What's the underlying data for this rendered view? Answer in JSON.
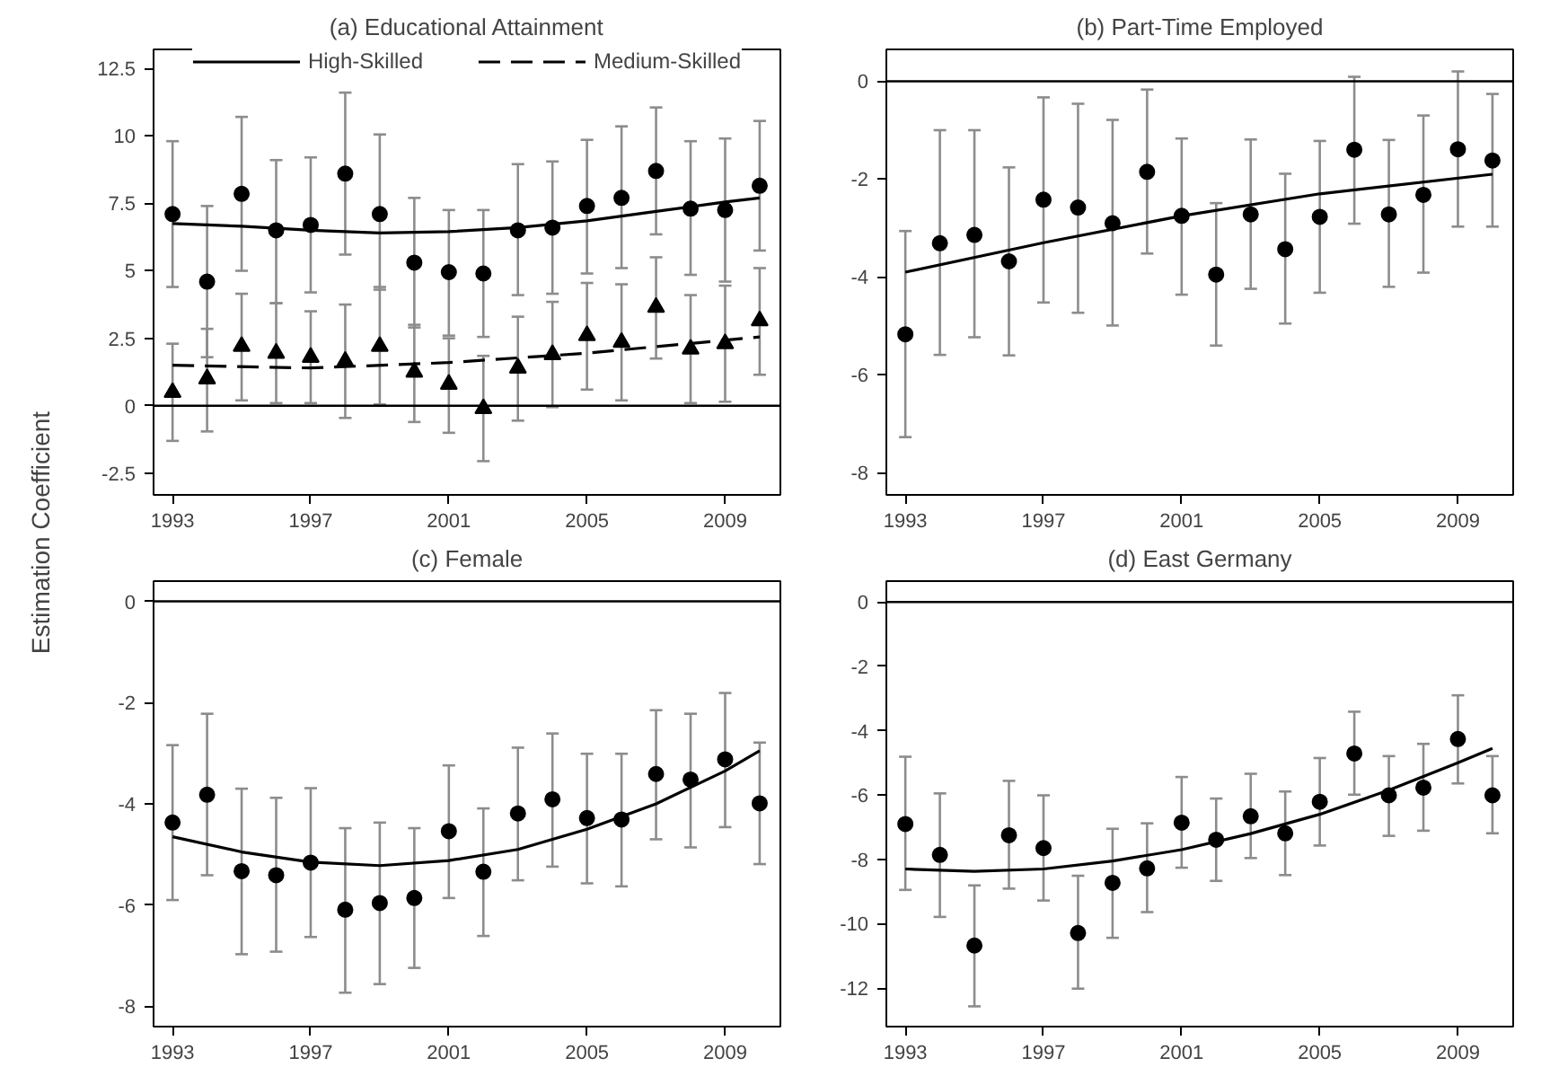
{
  "chart_data": [
    {
      "type": "scatter",
      "title": "(a) Educational Attainment",
      "ylabel": "Estimation Coefficient",
      "x": [
        1993,
        1994,
        1995,
        1996,
        1997,
        1998,
        1999,
        2000,
        2001,
        2002,
        2003,
        2004,
        2005,
        2006,
        2007,
        2008,
        2009,
        2010
      ],
      "xlim": [
        1992.45,
        2010.6
      ],
      "xticks": [
        1993,
        1997,
        2001,
        2005,
        2009
      ],
      "ylim": [
        -3.3,
        13.2
      ],
      "yticks": [
        -2.5,
        0,
        2.5,
        5,
        7.5,
        10,
        12.5
      ],
      "legend": "top",
      "ref_lines": [
        {
          "axis": "y",
          "value": 0,
          "color": "#000000"
        }
      ],
      "series": [
        {
          "color": "#000000",
          "marker": "circle",
          "values": [
            7.1,
            4.6,
            7.85,
            6.5,
            6.7,
            8.6,
            7.1,
            5.3,
            4.95,
            4.9,
            6.5,
            6.6,
            7.4,
            7.7,
            8.7,
            7.3,
            7.25,
            8.15
          ],
          "errors": [
            [
              4.4,
              9.8
            ],
            [
              1.8,
              7.4
            ],
            [
              5.0,
              10.7
            ],
            [
              3.8,
              9.1
            ],
            [
              4.2,
              9.2
            ],
            [
              5.6,
              11.6
            ],
            [
              4.3,
              10.05
            ],
            [
              2.9,
              7.7
            ],
            [
              2.6,
              7.25
            ],
            [
              2.55,
              7.25
            ],
            [
              4.1,
              8.95
            ],
            [
              4.15,
              9.05
            ],
            [
              4.9,
              9.85
            ],
            [
              5.1,
              10.35
            ],
            [
              6.35,
              11.05
            ],
            [
              4.85,
              9.8
            ],
            [
              4.6,
              9.9
            ],
            [
              5.75,
              10.55
            ]
          ]
        },
        {
          "color": "#000000",
          "marker": "triangle",
          "values": [
            0.5,
            1.0,
            2.2,
            1.95,
            1.8,
            1.65,
            2.2,
            1.25,
            0.8,
            -0.1,
            1.4,
            1.9,
            2.6,
            2.35,
            3.65,
            2.1,
            2.3,
            3.15
          ],
          "errors": [
            [
              -1.3,
              2.3
            ],
            [
              -0.95,
              2.85
            ],
            [
              0.2,
              4.15
            ],
            [
              0.1,
              3.8
            ],
            [
              0.1,
              3.5
            ],
            [
              -0.45,
              3.75
            ],
            [
              0.05,
              4.4
            ],
            [
              -0.6,
              3.0
            ],
            [
              -1.0,
              2.5
            ],
            [
              -2.05,
              1.85
            ],
            [
              -0.55,
              3.3
            ],
            [
              -0.05,
              3.85
            ],
            [
              0.6,
              4.55
            ],
            [
              0.2,
              4.5
            ],
            [
              1.75,
              5.5
            ],
            [
              0.1,
              4.1
            ],
            [
              0.15,
              4.45
            ],
            [
              1.15,
              5.1
            ]
          ]
        },
        {
          "type": "line",
          "name": "High-Skilled",
          "color": "#000000",
          "line_style": "solid",
          "x": [
            1993,
            1995,
            1997,
            1999,
            2001,
            2003,
            2005,
            2007,
            2009,
            2010
          ],
          "values": [
            6.75,
            6.65,
            6.5,
            6.4,
            6.45,
            6.6,
            6.85,
            7.2,
            7.55,
            7.7
          ]
        },
        {
          "type": "line",
          "name": "Medium-Skilled",
          "color": "#000000",
          "line_style": "dashed",
          "x": [
            1993,
            1997,
            2001,
            2005,
            2010
          ],
          "values": [
            1.5,
            1.4,
            1.6,
            1.95,
            2.55
          ]
        }
      ]
    },
    {
      "type": "scatter",
      "title": "(b) Part-Time Employed",
      "x": [
        1993,
        1994,
        1995,
        1996,
        1997,
        1998,
        1999,
        2000,
        2001,
        2002,
        2003,
        2004,
        2005,
        2006,
        2007,
        2008,
        2009,
        2010
      ],
      "xlim": [
        1992.45,
        2010.6
      ],
      "xticks": [
        1993,
        1997,
        2001,
        2005,
        2009
      ],
      "ylim": [
        -8.45,
        0.65
      ],
      "yticks": [
        -8,
        -6,
        -4,
        -2,
        0
      ],
      "ref_lines": [
        {
          "axis": "y",
          "value": 0,
          "color": "#000000"
        }
      ],
      "series": [
        {
          "color": "#000000",
          "marker": "circle",
          "values": [
            -5.17,
            -3.31,
            -3.14,
            -3.68,
            -2.42,
            -2.58,
            -2.9,
            -1.85,
            -2.75,
            -3.95,
            -2.72,
            -3.43,
            -2.77,
            -1.4,
            -2.72,
            -2.32,
            -1.39,
            -1.62
          ],
          "errors": [
            [
              -7.27,
              -3.06
            ],
            [
              -5.59,
              -1.0
            ],
            [
              -5.23,
              -1.0
            ],
            [
              -5.6,
              -1.76
            ],
            [
              -4.52,
              -0.33
            ],
            [
              -4.73,
              -0.46
            ],
            [
              -4.99,
              -0.79
            ],
            [
              -3.52,
              -0.17
            ],
            [
              -4.36,
              -1.17
            ],
            [
              -5.4,
              -2.49
            ],
            [
              -4.24,
              -1.19
            ],
            [
              -4.95,
              -1.89
            ],
            [
              -4.32,
              -1.22
            ],
            [
              -2.91,
              0.09
            ],
            [
              -4.2,
              -1.2
            ],
            [
              -3.91,
              -0.7
            ],
            [
              -2.97,
              0.2
            ],
            [
              -2.97,
              -0.26
            ]
          ]
        },
        {
          "type": "line",
          "color": "#000000",
          "line_style": "solid",
          "x": [
            1993,
            1997,
            2001,
            2005,
            2010
          ],
          "values": [
            -3.9,
            -3.3,
            -2.75,
            -2.3,
            -1.9
          ]
        }
      ]
    },
    {
      "type": "scatter",
      "title": "(c) Female",
      "x": [
        1993,
        1994,
        1995,
        1996,
        1997,
        1998,
        1999,
        2000,
        2001,
        2002,
        2003,
        2004,
        2005,
        2006,
        2007,
        2008,
        2009,
        2010
      ],
      "xlim": [
        1992.45,
        2010.6
      ],
      "xticks": [
        1993,
        1997,
        2001,
        2005,
        2009
      ],
      "ylim": [
        -8.4,
        0.4
      ],
      "yticks": [
        -8,
        -6,
        -4,
        -2,
        0
      ],
      "ref_lines": [
        {
          "axis": "y",
          "value": 0,
          "color": "#000000"
        }
      ],
      "series": [
        {
          "color": "#000000",
          "marker": "circle",
          "values": [
            -4.37,
            -3.82,
            -5.33,
            -5.41,
            -5.16,
            -6.09,
            -5.96,
            -5.86,
            -4.54,
            -5.34,
            -4.19,
            -3.91,
            -4.28,
            -4.31,
            -3.41,
            -3.52,
            -3.12,
            -3.99
          ],
          "errors": [
            [
              -5.9,
              -2.84
            ],
            [
              -5.41,
              -2.22
            ],
            [
              -6.97,
              -3.7
            ],
            [
              -6.92,
              -3.88
            ],
            [
              -6.63,
              -3.69
            ],
            [
              -7.73,
              -4.48
            ],
            [
              -7.56,
              -4.37
            ],
            [
              -7.24,
              -4.48
            ],
            [
              -5.86,
              -3.24
            ],
            [
              -6.61,
              -4.09
            ],
            [
              -5.51,
              -2.89
            ],
            [
              -5.24,
              -2.61
            ],
            [
              -5.57,
              -3.01
            ],
            [
              -5.63,
              -3.01
            ],
            [
              -4.7,
              -2.15
            ],
            [
              -4.86,
              -2.22
            ],
            [
              -4.46,
              -1.81
            ],
            [
              -5.19,
              -2.79
            ]
          ]
        },
        {
          "type": "line",
          "color": "#000000",
          "line_style": "solid",
          "x": [
            1993,
            1995,
            1997,
            1999,
            2001,
            2003,
            2005,
            2007,
            2009,
            2010
          ],
          "values": [
            -4.65,
            -4.95,
            -5.15,
            -5.22,
            -5.12,
            -4.9,
            -4.5,
            -4.0,
            -3.35,
            -2.95
          ]
        }
      ]
    },
    {
      "type": "scatter",
      "title": "(d) East Germany",
      "x": [
        1993,
        1994,
        1995,
        1996,
        1997,
        1998,
        1999,
        2000,
        2001,
        2002,
        2003,
        2004,
        2005,
        2006,
        2007,
        2008,
        2009,
        2010
      ],
      "xlim": [
        1992.45,
        2010.6
      ],
      "xticks": [
        1993,
        1997,
        2001,
        2005,
        2009
      ],
      "ylim": [
        -13.2,
        0.65
      ],
      "yticks": [
        -12,
        -10,
        -8,
        -6,
        -4,
        -2,
        0
      ],
      "ref_lines": [
        {
          "axis": "y",
          "value": 0,
          "color": "#000000"
        }
      ],
      "series": [
        {
          "color": "#000000",
          "marker": "circle",
          "values": [
            -6.9,
            -7.86,
            -10.68,
            -7.25,
            -7.65,
            -10.29,
            -8.73,
            -8.28,
            -6.86,
            -7.39,
            -6.66,
            -7.19,
            -6.21,
            -4.71,
            -6.01,
            -5.77,
            -4.26,
            -6.01
          ],
          "errors": [
            [
              -8.95,
              -4.81
            ],
            [
              -9.79,
              -5.95
            ],
            [
              -12.57,
              -8.81
            ],
            [
              -8.91,
              -5.56
            ],
            [
              -9.28,
              -6.01
            ],
            [
              -12.02,
              -8.51
            ],
            [
              -10.44,
              -7.05
            ],
            [
              -9.64,
              -6.88
            ],
            [
              -8.26,
              -5.44
            ],
            [
              -8.67,
              -6.11
            ],
            [
              -7.96,
              -5.34
            ],
            [
              -8.49,
              -5.89
            ],
            [
              -7.57,
              -4.85
            ],
            [
              -5.99,
              -3.41
            ],
            [
              -7.27,
              -4.79
            ],
            [
              -7.11,
              -4.41
            ],
            [
              -5.64,
              -2.9
            ],
            [
              -7.19,
              -4.79
            ]
          ]
        },
        {
          "type": "line",
          "color": "#000000",
          "line_style": "solid",
          "x": [
            1993,
            1995,
            1997,
            1999,
            2001,
            2003,
            2005,
            2007,
            2009,
            2010
          ],
          "values": [
            -8.3,
            -8.37,
            -8.3,
            -8.05,
            -7.7,
            -7.2,
            -6.6,
            -5.85,
            -5.0,
            -4.55
          ]
        }
      ]
    }
  ]
}
